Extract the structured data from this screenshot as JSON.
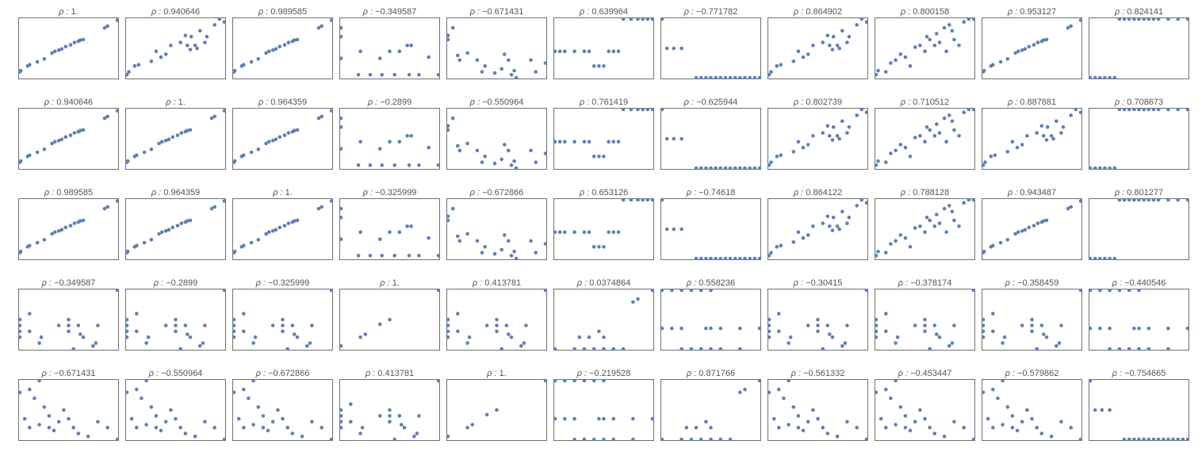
{
  "colors": {
    "point": "#5E81B5",
    "frame": "#707070",
    "title": "#555555",
    "background": "#FFFFFF"
  },
  "chart_data": {
    "type": "scatter",
    "layout": "scatter-plot matrix",
    "rows": 5,
    "cols": 11,
    "axes_ticks": false,
    "grid": false,
    "legend": "none",
    "title_prefix": "ρ : ",
    "coefficients": [
      [
        "1.",
        "0.940646",
        "0.989585",
        "−0.349587",
        "−0.671431",
        "0.639964",
        "−0.771782",
        "0.864902",
        "0.800158",
        "0.953127",
        "0.824141"
      ],
      [
        "0.940646",
        "1.",
        "0.964359",
        "−0.2899",
        "−0.550964",
        "0.761419",
        "−0.625944",
        "0.802739",
        "0.710512",
        "0.887881",
        "0.708673"
      ],
      [
        "0.989585",
        "0.964359",
        "1.",
        "−0.325999",
        "−0.672866",
        "0.653126",
        "−0.74618",
        "0.864122",
        "0.788128",
        "0.943487",
        "0.801277"
      ],
      [
        "−0.349587",
        "−0.2899",
        "−0.325999",
        "1.",
        "0.413781",
        "0.0374864",
        "0.558236",
        "−0.30415",
        "−0.378174",
        "−0.358459",
        "−0.440546"
      ],
      [
        "−0.671431",
        "−0.550964",
        "−0.672866",
        "0.413781",
        "1.",
        "−0.219528",
        "0.871766",
        "−0.561332",
        "−0.453447",
        "−0.579862",
        "−0.754665"
      ]
    ],
    "point_sets": {
      "a": [
        [
          0.0,
          0.1
        ],
        [
          0.01,
          0.12
        ],
        [
          0.08,
          0.2
        ],
        [
          0.1,
          0.22
        ],
        [
          0.18,
          0.27
        ],
        [
          0.25,
          0.32
        ],
        [
          0.33,
          0.42
        ],
        [
          0.36,
          0.45
        ],
        [
          0.4,
          0.47
        ],
        [
          0.43,
          0.49
        ],
        [
          0.47,
          0.53
        ],
        [
          0.52,
          0.56
        ],
        [
          0.56,
          0.6
        ],
        [
          0.6,
          0.62
        ],
        [
          0.62,
          0.64
        ],
        [
          0.65,
          0.65
        ],
        [
          0.87,
          0.85
        ],
        [
          0.9,
          0.88
        ],
        [
          1.0,
          0.98
        ]
      ],
      "b": [
        [
          0.0,
          0.33
        ],
        [
          0.0,
          0.7
        ],
        [
          0.0,
          0.85
        ],
        [
          0.18,
          0.05
        ],
        [
          0.2,
          0.45
        ],
        [
          0.3,
          0.05
        ],
        [
          0.4,
          0.33
        ],
        [
          0.42,
          0.05
        ],
        [
          0.5,
          0.45
        ],
        [
          0.55,
          0.05
        ],
        [
          0.6,
          0.45
        ],
        [
          0.68,
          0.55
        ],
        [
          0.7,
          0.05
        ],
        [
          0.72,
          0.55
        ],
        [
          0.8,
          0.05
        ],
        [
          0.9,
          0.35
        ],
        [
          1.0,
          0.05
        ]
      ],
      "c": [
        [
          0.0,
          0.65
        ],
        [
          0.0,
          0.72
        ],
        [
          0.05,
          0.85
        ],
        [
          0.1,
          0.38
        ],
        [
          0.12,
          0.3
        ],
        [
          0.2,
          0.42
        ],
        [
          0.3,
          0.3
        ],
        [
          0.35,
          0.1
        ],
        [
          0.38,
          0.2
        ],
        [
          0.48,
          0.08
        ],
        [
          0.55,
          0.15
        ],
        [
          0.58,
          0.4
        ],
        [
          0.62,
          0.3
        ],
        [
          0.65,
          0.05
        ],
        [
          0.68,
          0.12
        ],
        [
          0.7,
          0.0
        ],
        [
          0.85,
          0.3
        ],
        [
          0.9,
          0.1
        ],
        [
          1.0,
          0.25
        ]
      ],
      "d": [
        [
          0.0,
          0.45
        ],
        [
          0.05,
          0.45
        ],
        [
          0.1,
          0.45
        ],
        [
          0.2,
          0.45
        ],
        [
          0.3,
          0.45
        ],
        [
          0.35,
          0.45
        ],
        [
          0.4,
          0.2
        ],
        [
          0.45,
          0.2
        ],
        [
          0.5,
          0.2
        ],
        [
          0.55,
          0.45
        ],
        [
          0.6,
          0.45
        ],
        [
          0.65,
          0.45
        ],
        [
          0.7,
          1.0
        ],
        [
          0.78,
          1.0
        ],
        [
          0.85,
          1.0
        ],
        [
          0.9,
          1.0
        ],
        [
          0.95,
          1.0
        ],
        [
          1.0,
          1.0
        ]
      ],
      "e": [
        [
          0.0,
          1.0
        ],
        [
          0.05,
          0.5
        ],
        [
          0.12,
          0.5
        ],
        [
          0.2,
          0.5
        ],
        [
          0.35,
          0.0
        ],
        [
          0.4,
          0.0
        ],
        [
          0.45,
          0.0
        ],
        [
          0.5,
          0.0
        ],
        [
          0.55,
          0.0
        ],
        [
          0.6,
          0.0
        ],
        [
          0.65,
          0.0
        ],
        [
          0.7,
          0.0
        ],
        [
          0.75,
          0.0
        ],
        [
          0.8,
          0.0
        ],
        [
          0.85,
          0.0
        ],
        [
          0.9,
          0.0
        ],
        [
          0.95,
          0.0
        ],
        [
          1.0,
          0.0
        ]
      ],
      "f": [
        [
          0.0,
          0.05
        ],
        [
          0.02,
          0.1
        ],
        [
          0.08,
          0.2
        ],
        [
          0.12,
          0.22
        ],
        [
          0.25,
          0.28
        ],
        [
          0.3,
          0.45
        ],
        [
          0.35,
          0.35
        ],
        [
          0.4,
          0.4
        ],
        [
          0.45,
          0.55
        ],
        [
          0.55,
          0.6
        ],
        [
          0.6,
          0.72
        ],
        [
          0.62,
          0.55
        ],
        [
          0.65,
          0.48
        ],
        [
          0.66,
          0.7
        ],
        [
          0.7,
          0.55
        ],
        [
          0.72,
          0.5
        ],
        [
          0.75,
          0.8
        ],
        [
          0.8,
          0.6
        ],
        [
          0.82,
          0.7
        ],
        [
          0.9,
          0.9
        ],
        [
          0.95,
          1.0
        ],
        [
          1.0,
          0.95
        ]
      ],
      "g": [
        [
          0.0,
          0.05
        ],
        [
          0.02,
          0.12
        ],
        [
          0.1,
          0.1
        ],
        [
          0.15,
          0.25
        ],
        [
          0.2,
          0.3
        ],
        [
          0.25,
          0.4
        ],
        [
          0.3,
          0.35
        ],
        [
          0.35,
          0.2
        ],
        [
          0.4,
          0.52
        ],
        [
          0.45,
          0.55
        ],
        [
          0.5,
          0.45
        ],
        [
          0.52,
          0.7
        ],
        [
          0.55,
          0.65
        ],
        [
          0.6,
          0.55
        ],
        [
          0.62,
          0.75
        ],
        [
          0.65,
          0.6
        ],
        [
          0.7,
          0.85
        ],
        [
          0.72,
          0.45
        ],
        [
          0.75,
          0.9
        ],
        [
          0.78,
          0.8
        ],
        [
          0.8,
          0.65
        ],
        [
          0.85,
          0.55
        ],
        [
          0.9,
          0.95
        ],
        [
          0.95,
          1.0
        ],
        [
          1.0,
          1.0
        ]
      ],
      "h": [
        [
          0.0,
          0.0
        ],
        [
          0.05,
          0.0
        ],
        [
          0.1,
          0.0
        ],
        [
          0.15,
          0.0
        ],
        [
          0.2,
          0.0
        ],
        [
          0.25,
          0.0
        ],
        [
          0.3,
          1.0
        ],
        [
          0.35,
          1.0
        ],
        [
          0.4,
          1.0
        ],
        [
          0.45,
          1.0
        ],
        [
          0.5,
          1.0
        ],
        [
          0.55,
          1.0
        ],
        [
          0.6,
          1.0
        ],
        [
          0.65,
          1.0
        ],
        [
          0.7,
          1.0
        ],
        [
          0.8,
          1.0
        ],
        [
          0.9,
          1.0
        ],
        [
          1.0,
          1.0
        ]
      ],
      "i": [
        [
          0.0,
          0.05
        ],
        [
          0.2,
          0.2
        ],
        [
          0.25,
          0.25
        ],
        [
          0.4,
          0.42
        ],
        [
          0.5,
          0.5
        ],
        [
          1.0,
          1.0
        ]
      ],
      "j": [
        [
          0.0,
          0.5
        ],
        [
          0.0,
          0.4
        ],
        [
          0.0,
          0.3
        ],
        [
          0.0,
          0.2
        ],
        [
          0.1,
          0.6
        ],
        [
          0.1,
          0.3
        ],
        [
          0.2,
          0.1
        ],
        [
          0.22,
          0.2
        ],
        [
          0.4,
          0.4
        ],
        [
          0.5,
          0.4
        ],
        [
          0.5,
          0.5
        ],
        [
          0.5,
          0.3
        ],
        [
          0.55,
          0.0
        ],
        [
          0.6,
          0.4
        ],
        [
          0.62,
          0.25
        ],
        [
          0.65,
          0.2
        ],
        [
          0.75,
          0.05
        ],
        [
          0.78,
          0.1
        ],
        [
          0.8,
          0.4
        ],
        [
          1.0,
          1.0
        ]
      ],
      "k": [
        [
          0.0,
          0.0
        ],
        [
          0.2,
          0.0
        ],
        [
          0.3,
          0.0
        ],
        [
          0.4,
          0.0
        ],
        [
          0.5,
          0.0
        ],
        [
          0.6,
          0.0
        ],
        [
          0.7,
          0.0
        ],
        [
          0.25,
          0.2
        ],
        [
          0.35,
          0.2
        ],
        [
          0.45,
          0.3
        ],
        [
          0.5,
          0.2
        ],
        [
          0.8,
          0.8
        ],
        [
          0.85,
          0.85
        ],
        [
          1.0,
          1.0
        ]
      ],
      "l": [
        [
          0.0,
          1.0
        ],
        [
          0.1,
          1.0
        ],
        [
          0.2,
          1.0
        ],
        [
          0.3,
          1.0
        ],
        [
          0.4,
          1.0
        ],
        [
          0.5,
          1.0
        ],
        [
          0.0,
          0.35
        ],
        [
          0.1,
          0.35
        ],
        [
          0.2,
          0.35
        ],
        [
          0.45,
          0.35
        ],
        [
          0.5,
          0.35
        ],
        [
          0.6,
          0.35
        ],
        [
          0.8,
          0.35
        ],
        [
          1.0,
          0.35
        ],
        [
          0.2,
          0.0
        ],
        [
          0.3,
          0.0
        ],
        [
          0.4,
          0.0
        ],
        [
          0.5,
          0.0
        ],
        [
          0.6,
          0.0
        ],
        [
          0.8,
          0.0
        ]
      ],
      "m": [
        [
          0.0,
          0.8
        ],
        [
          0.1,
          0.85
        ],
        [
          0.2,
          1.0
        ],
        [
          0.15,
          0.7
        ],
        [
          0.25,
          0.55
        ],
        [
          0.3,
          0.4
        ],
        [
          0.4,
          0.3
        ],
        [
          0.05,
          0.35
        ],
        [
          0.1,
          0.2
        ],
        [
          0.2,
          0.25
        ],
        [
          0.3,
          0.2
        ],
        [
          0.35,
          0.15
        ],
        [
          0.45,
          0.5
        ],
        [
          0.5,
          0.35
        ],
        [
          0.55,
          0.2
        ],
        [
          0.6,
          0.1
        ],
        [
          0.7,
          0.05
        ],
        [
          0.8,
          0.3
        ],
        [
          0.9,
          0.2
        ],
        [
          1.0,
          0.0
        ]
      ]
    },
    "panel_pattern": [
      [
        "a",
        "f",
        "a",
        "b",
        "c",
        "d",
        "e",
        "f",
        "g",
        "a",
        "h"
      ],
      [
        "a",
        "a",
        "a",
        "b",
        "c",
        "d",
        "e",
        "f",
        "g",
        "f",
        "h"
      ],
      [
        "a",
        "a",
        "a",
        "b",
        "c",
        "d",
        "e",
        "f",
        "g",
        "a",
        "h"
      ],
      [
        "j",
        "j",
        "j",
        "i",
        "j",
        "k",
        "l",
        "j",
        "j",
        "j",
        "l"
      ],
      [
        "m",
        "m",
        "m",
        "j",
        "i",
        "l",
        "k",
        "m",
        "m",
        "m",
        "e"
      ]
    ]
  }
}
